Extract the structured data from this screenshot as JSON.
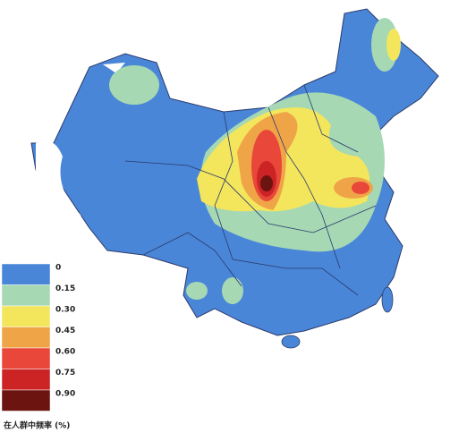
{
  "legend": {
    "items": [
      {
        "label": "0",
        "color": "#4a86d8"
      },
      {
        "label": "0.15",
        "color": "#a6d8b4"
      },
      {
        "label": "0.30",
        "color": "#f4e65c"
      },
      {
        "label": "0.45",
        "color": "#f0a448"
      },
      {
        "label": "0.60",
        "color": "#e8473a"
      },
      {
        "label": "0.75",
        "color": "#cc2424"
      },
      {
        "label": "0.90",
        "color": "#6b1410"
      }
    ],
    "title": "在人群中频率 (%)"
  }
}
